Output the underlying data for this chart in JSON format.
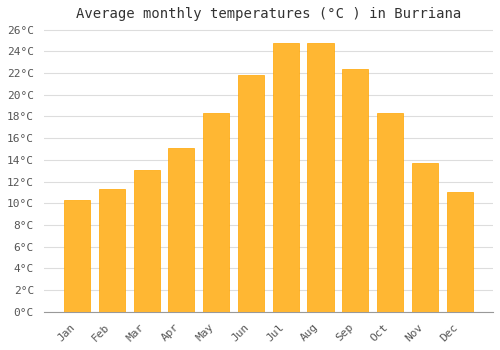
{
  "title": "Average monthly temperatures (°C ) in Burriana",
  "months": [
    "Jan",
    "Feb",
    "Mar",
    "Apr",
    "May",
    "Jun",
    "Jul",
    "Aug",
    "Sep",
    "Oct",
    "Nov",
    "Dec"
  ],
  "values": [
    10.3,
    11.3,
    13.1,
    15.1,
    18.3,
    21.8,
    24.8,
    24.8,
    22.4,
    18.3,
    13.7,
    11.0
  ],
  "bar_color": "#FFA500",
  "bar_color_light": "#FFB733",
  "bar_edge_color": "#FFA500",
  "ylim_max": 26,
  "ytick_step": 2,
  "background_color": "#ffffff",
  "plot_bg_color": "#f5f5f5",
  "grid_color": "#dddddd",
  "title_fontsize": 10,
  "tick_fontsize": 8,
  "font_family": "monospace"
}
